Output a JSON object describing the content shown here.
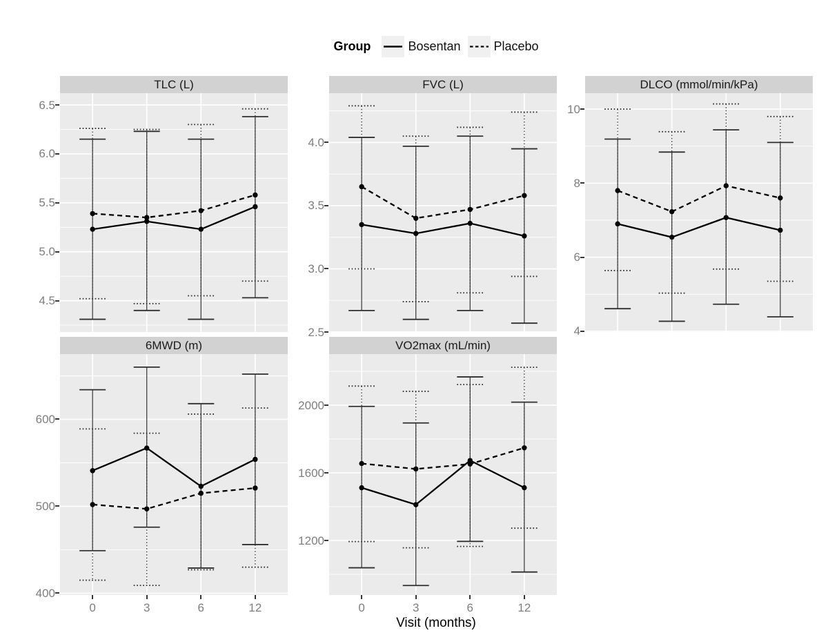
{
  "figure": {
    "legend": {
      "title": "Group",
      "items": [
        {
          "label": "Bosentan",
          "linestyle": "solid"
        },
        {
          "label": "Placebo",
          "linestyle": "dashed"
        }
      ]
    },
    "x_axis": {
      "label": "Visit (months)",
      "categories": [
        "0",
        "3",
        "6",
        "12"
      ]
    }
  },
  "colors": {
    "panel_bg": "#ebebeb",
    "strip_bg": "#d2d2d2",
    "grid": "#ffffff",
    "series": "#000000",
    "errorbar": "#2e2e2e",
    "axis_text": "#7f7f7f",
    "tick_mark": "#383838",
    "legend_key_bg": "#f0f0f0"
  },
  "chart_data": [
    {
      "type": "line",
      "title": "TLC (L)",
      "x": [
        "0",
        "3",
        "6",
        "12"
      ],
      "ylim": [
        4.18,
        6.62
      ],
      "yticks": [
        4.5,
        5.0,
        5.5,
        6.0,
        6.5
      ],
      "ytick_labels": [
        "4.5",
        "5.0",
        "5.5",
        "6.0",
        "6.5"
      ],
      "yticks_minor": [
        4.25,
        4.75,
        5.25,
        5.75,
        6.25
      ],
      "has_x_axis": false,
      "series": [
        {
          "name": "Bosentan",
          "linestyle": "solid",
          "mean": [
            5.23,
            5.31,
            5.23,
            5.46
          ],
          "lo": [
            4.31,
            4.4,
            4.31,
            4.53
          ],
          "hi": [
            6.15,
            6.23,
            6.15,
            6.38
          ]
        },
        {
          "name": "Placebo",
          "linestyle": "dashed",
          "mean": [
            5.39,
            5.35,
            5.42,
            5.58
          ],
          "lo": [
            4.52,
            4.47,
            4.55,
            4.7
          ],
          "hi": [
            6.26,
            6.25,
            6.3,
            6.46
          ]
        }
      ]
    },
    {
      "type": "line",
      "title": "FVC (L)",
      "x": [
        "0",
        "3",
        "6",
        "12"
      ],
      "ylim": [
        2.5,
        4.39
      ],
      "yticks": [
        2.5,
        3.0,
        3.5,
        4.0
      ],
      "ytick_labels": [
        "2.5",
        "3.0",
        "3.5",
        "4.0"
      ],
      "yticks_minor": [
        2.75,
        3.25,
        3.75,
        4.25
      ],
      "has_x_axis": false,
      "series": [
        {
          "name": "Bosentan",
          "linestyle": "solid",
          "mean": [
            3.35,
            3.28,
            3.36,
            3.26
          ],
          "lo": [
            2.67,
            2.6,
            2.67,
            2.57
          ],
          "hi": [
            4.04,
            3.97,
            4.05,
            3.95
          ]
        },
        {
          "name": "Placebo",
          "linestyle": "dashed",
          "mean": [
            3.65,
            3.4,
            3.47,
            3.58
          ],
          "lo": [
            3.0,
            2.74,
            2.81,
            2.94
          ],
          "hi": [
            4.29,
            4.05,
            4.12,
            4.24
          ]
        }
      ]
    },
    {
      "type": "line",
      "title": "DLCO (mmol/min/kPa)",
      "x": [
        "0",
        "3",
        "6",
        "12"
      ],
      "ylim": [
        3.98,
        10.43
      ],
      "yticks": [
        4,
        6,
        8,
        10
      ],
      "ytick_labels": [
        "4",
        "6",
        "8",
        "10"
      ],
      "yticks_minor": [
        5,
        7,
        9
      ],
      "has_x_axis": false,
      "series": [
        {
          "name": "Bosentan",
          "linestyle": "solid",
          "mean": [
            6.9,
            6.54,
            7.07,
            6.73
          ],
          "lo": [
            4.61,
            4.27,
            4.73,
            4.39
          ],
          "hi": [
            9.19,
            8.84,
            9.44,
            9.1
          ]
        },
        {
          "name": "Placebo",
          "linestyle": "dashed",
          "mean": [
            7.8,
            7.23,
            7.93,
            7.6
          ],
          "lo": [
            5.64,
            5.03,
            5.68,
            5.35
          ],
          "hi": [
            10.0,
            9.39,
            10.14,
            9.8
          ]
        }
      ]
    },
    {
      "type": "line",
      "title": "6MWD (m)",
      "x": [
        "0",
        "3",
        "6",
        "12"
      ],
      "ylim": [
        398,
        675
      ],
      "yticks": [
        400,
        500,
        600
      ],
      "ytick_labels": [
        "400",
        "500",
        "600"
      ],
      "yticks_minor": [
        450,
        550,
        650
      ],
      "has_x_axis": true,
      "series": [
        {
          "name": "Bosentan",
          "linestyle": "solid",
          "mean": [
            541,
            567,
            523,
            554
          ],
          "lo": [
            449,
            476,
            429,
            456
          ],
          "hi": [
            634,
            660,
            618,
            652
          ]
        },
        {
          "name": "Placebo",
          "linestyle": "dashed",
          "mean": [
            502,
            497,
            515,
            521
          ],
          "lo": [
            415,
            409,
            427,
            430
          ],
          "hi": [
            589,
            584,
            606,
            613
          ]
        }
      ]
    },
    {
      "type": "line",
      "title": "VO2max (mL/min)",
      "x": [
        "0",
        "3",
        "6",
        "12"
      ],
      "ylim": [
        878,
        2302
      ],
      "yticks": [
        1200,
        1600,
        2000
      ],
      "ytick_labels": [
        "1200",
        "1600",
        "2000"
      ],
      "yticks_minor": [
        1000,
        1400,
        1800,
        2200
      ],
      "has_x_axis": true,
      "series": [
        {
          "name": "Bosentan",
          "linestyle": "solid",
          "mean": [
            1512,
            1412,
            1673,
            1512
          ],
          "lo": [
            1039,
            934,
            1195,
            1014
          ],
          "hi": [
            1993,
            1895,
            2167,
            2018
          ]
        },
        {
          "name": "Placebo",
          "linestyle": "dashed",
          "mean": [
            1655,
            1623,
            1652,
            1748
          ],
          "lo": [
            1194,
            1157,
            1165,
            1273
          ],
          "hi": [
            2113,
            2082,
            2122,
            2224
          ]
        }
      ]
    }
  ]
}
